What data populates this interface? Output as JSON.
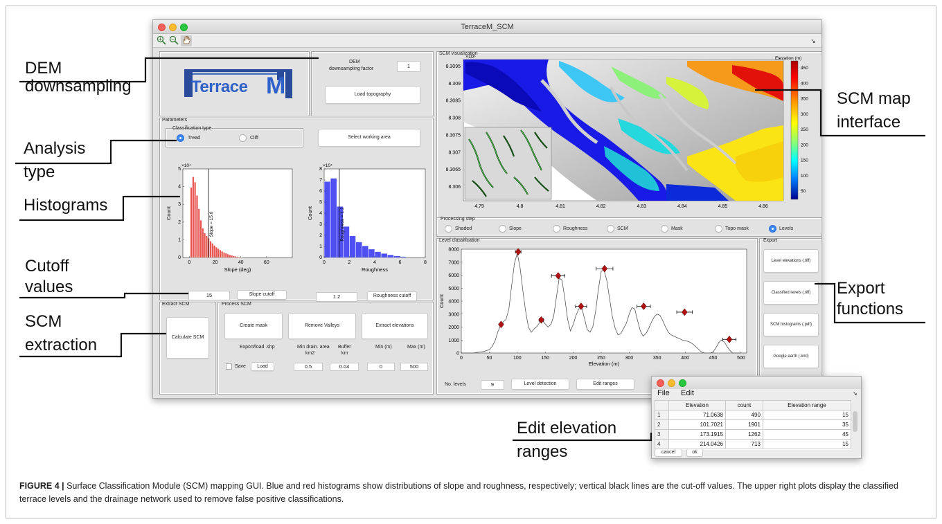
{
  "window": {
    "title": "TerraceM_SCM"
  },
  "toolbar": {
    "zoom_in": "🔍",
    "zoom_out": "🔍",
    "pan": "✋",
    "arrow": "↘"
  },
  "annotations": {
    "dem": [
      "DEM",
      "downsampling"
    ],
    "analysis": [
      "Analysis",
      "type"
    ],
    "histograms": "Histograms",
    "cutoff": [
      "Cutoff",
      "values"
    ],
    "scm_extraction": [
      "SCM",
      "extraction"
    ],
    "scm_map": [
      "SCM map",
      "interface"
    ],
    "export": [
      "Export",
      "functions"
    ],
    "edit_ranges": [
      "Edit elevation",
      "ranges"
    ]
  },
  "logo": {
    "text_left": "Terrace",
    "text_right": "M"
  },
  "dem_panel": {
    "label_line1": "DEM",
    "label_line2": "downsampling factor",
    "factor": "1",
    "load_button": "Load topography"
  },
  "parameters": {
    "title": "Parameters",
    "classification_title": "Classification type",
    "tread": "Tread",
    "cliff": "Cliff",
    "select_area": "Select working area",
    "slope_value": "15",
    "slope_cutoff": "Slope cutoff",
    "roughness_value": "1.2",
    "roughness_cutoff": "Roughness cutoff"
  },
  "extract_scm": {
    "title": "Extract SCM",
    "calculate": "Calculate SCM"
  },
  "process_scm": {
    "title": "Process SCM",
    "create_mask": "Create mask",
    "remove_valleys": "Remove Valleys",
    "extract_elevations": "Extract elevations",
    "export_load": "Export/load .shp",
    "min_drain_1": "Min drain. area",
    "min_drain_2": "km2",
    "buffer_1": "Buffer",
    "buffer_2": "km",
    "min_label": "Min (m)",
    "max_label": "Max (m)",
    "save": "Save",
    "load": "Load",
    "min_drain_val": "0.5",
    "buffer_val": "0.04",
    "min_val": "0",
    "max_val": "500"
  },
  "visualization": {
    "title": "SCM visualization",
    "cbar_title": "Elevation (m)",
    "yexp": "×10⁶",
    "yticks": [
      "8.3095",
      "8.309",
      "8.3085",
      "8.308",
      "8.3075",
      "8.307",
      "8.3065",
      "8.306"
    ],
    "xticks": [
      "4.79",
      "4.8",
      "4.81",
      "4.82",
      "4.83",
      "4.84",
      "4.85",
      "4.86"
    ],
    "cticks": [
      "450",
      "400",
      "350",
      "300",
      "250",
      "200",
      "150",
      "100",
      "50"
    ]
  },
  "processing_step": {
    "title": "Processing step",
    "options": [
      "Shaded",
      "Slope",
      "Roughness",
      "SCM",
      "Mask",
      "Topo mask",
      "Levels"
    ],
    "selected": "Levels"
  },
  "level_classification": {
    "title": "Level classification",
    "no_levels_label": "No. levels",
    "no_levels": "9",
    "level_detection": "Level detection",
    "edit_ranges": "Edit ranges"
  },
  "export": {
    "title": "Export",
    "buttons": [
      "Level elevations (.tiff)",
      "Classified levels (.tiff)",
      "SCM histograms (.pdf)",
      "Google earth (.kml)"
    ]
  },
  "popup": {
    "menu": [
      "File",
      "Edit"
    ],
    "columns": [
      "Elevation",
      "count",
      "Elevation range"
    ],
    "rows": [
      [
        "1",
        "71.0638",
        "490",
        "15"
      ],
      [
        "2",
        "101.7021",
        "1901",
        "35"
      ],
      [
        "3",
        "173.1915",
        "1262",
        "45"
      ],
      [
        "4",
        "214.0426",
        "713",
        "15"
      ]
    ],
    "cancel": "cancel",
    "ok": "ok"
  },
  "caption": {
    "label": "FIGURE 4 |",
    "text": " Surface Classification Module (SCM) mapping GUI. Blue and red histograms show distributions of slope and roughness, respectively; vertical black lines are the cut-off values. The upper right plots display the classified terrace levels and the drainage network used to remove false positive classifications."
  },
  "chart_data": [
    {
      "type": "bar",
      "name": "slope histogram",
      "xlabel": "Slope (deg)",
      "ylabel": "Count",
      "y_exponent": "×10⁴",
      "xlim": [
        -5,
        80
      ],
      "ylim": [
        0,
        5
      ],
      "xticks": [
        0,
        20,
        40,
        60
      ],
      "yticks": [
        0,
        1,
        2,
        3,
        4,
        5
      ],
      "bar_width": 1.3,
      "x": [
        1.5,
        3,
        4.5,
        6,
        7.5,
        9,
        10.5,
        12,
        13.5,
        15,
        16.5,
        18,
        19.5,
        21,
        22.5,
        24,
        25.5,
        27,
        28.5,
        30,
        31.5,
        33,
        34.5,
        36,
        37.5,
        39,
        40.5
      ],
      "values": [
        3.95,
        4.55,
        4.25,
        3.5,
        2.75,
        2.1,
        1.65,
        1.38,
        1.22,
        1.08,
        0.92,
        0.8,
        0.68,
        0.58,
        0.5,
        0.42,
        0.35,
        0.29,
        0.24,
        0.19,
        0.15,
        0.12,
        0.09,
        0.07,
        0.05,
        0.03,
        0.02
      ],
      "color": "#e8534f",
      "cutoff": 15,
      "cutoff_label": "Slope = 15.0"
    },
    {
      "type": "bar",
      "name": "roughness histogram",
      "xlabel": "Roughness",
      "ylabel": "Count",
      "y_exponent": "×10⁴",
      "xlim": [
        0,
        8
      ],
      "ylim": [
        0,
        8
      ],
      "xticks": [
        0,
        2,
        4,
        6,
        8
      ],
      "yticks": [
        0,
        1,
        2,
        3,
        4,
        5,
        6,
        7,
        8
      ],
      "bar_width": 0.48,
      "x": [
        0.25,
        0.75,
        1.25,
        1.75,
        2.25,
        2.75,
        3.25,
        3.75,
        4.25,
        4.75,
        5.25,
        5.75,
        6.25
      ],
      "values": [
        6.85,
        7.15,
        4.6,
        2.8,
        1.95,
        1.4,
        1.05,
        0.75,
        0.52,
        0.36,
        0.24,
        0.14,
        0.08
      ],
      "color": "#5050f2",
      "cutoff": 1.2,
      "cutoff_label": "Roughness = 1.2"
    },
    {
      "type": "line",
      "name": "level classification",
      "xlabel": "Elevation (m)",
      "ylabel": "Count",
      "xlim": [
        0,
        510
      ],
      "ylim": [
        0,
        8000
      ],
      "xticks": [
        0,
        50,
        100,
        150,
        200,
        250,
        300,
        350,
        400,
        450,
        500
      ],
      "yticks": [
        0,
        1000,
        2000,
        3000,
        4000,
        5000,
        6000,
        7000,
        8000
      ],
      "x": [
        0,
        10,
        20,
        30,
        40,
        50,
        55,
        60,
        65,
        70,
        75,
        80,
        85,
        90,
        95,
        100,
        105,
        110,
        115,
        120,
        125,
        130,
        135,
        140,
        145,
        150,
        155,
        160,
        165,
        170,
        175,
        180,
        185,
        190,
        195,
        200,
        205,
        210,
        215,
        220,
        225,
        230,
        235,
        240,
        245,
        250,
        255,
        260,
        265,
        270,
        275,
        280,
        285,
        290,
        295,
        300,
        305,
        310,
        315,
        320,
        325,
        330,
        335,
        340,
        345,
        350,
        355,
        360,
        365,
        370,
        375,
        380,
        385,
        390,
        395,
        400,
        405,
        410,
        415,
        420,
        425,
        430,
        435,
        440,
        445,
        450,
        455,
        460,
        465,
        470,
        475,
        480,
        485,
        490,
        495,
        500
      ],
      "y": [
        0,
        0,
        0,
        60,
        120,
        250,
        500,
        900,
        1600,
        2100,
        2400,
        2600,
        3400,
        5200,
        6900,
        7700,
        6600,
        4800,
        3200,
        2000,
        1600,
        1850,
        2050,
        2350,
        2500,
        2250,
        2000,
        2200,
        2800,
        4300,
        5800,
        5600,
        4200,
        2600,
        1700,
        2200,
        2900,
        3400,
        3500,
        2700,
        1800,
        1600,
        2000,
        3200,
        4900,
        6300,
        6400,
        5600,
        4200,
        2800,
        1900,
        1400,
        1500,
        1900,
        2300,
        3000,
        3500,
        3400,
        2500,
        1700,
        1300,
        1500,
        1900,
        2400,
        2800,
        3000,
        2900,
        2500,
        2000,
        1600,
        1400,
        1300,
        1200,
        1100,
        1000,
        950,
        900,
        800,
        650,
        450,
        250,
        60,
        0,
        0,
        0,
        80,
        400,
        800,
        1000,
        850,
        500,
        200,
        0,
        0,
        0,
        0
      ],
      "levels": [
        {
          "elevation": 71.0638,
          "count": 2200,
          "range": 0
        },
        {
          "elevation": 101.7021,
          "count": 7800,
          "range": 5
        },
        {
          "elevation": 143,
          "count": 2550,
          "range": 4
        },
        {
          "elevation": 173.1915,
          "count": 5950,
          "range": 12
        },
        {
          "elevation": 214.0426,
          "count": 3600,
          "range": 10
        },
        {
          "elevation": 256,
          "count": 6500,
          "range": 15
        },
        {
          "elevation": 326,
          "count": 3600,
          "range": 12
        },
        {
          "elevation": 399,
          "count": 3150,
          "range": 14
        },
        {
          "elevation": 479,
          "count": 1050,
          "range": 12
        }
      ]
    }
  ]
}
